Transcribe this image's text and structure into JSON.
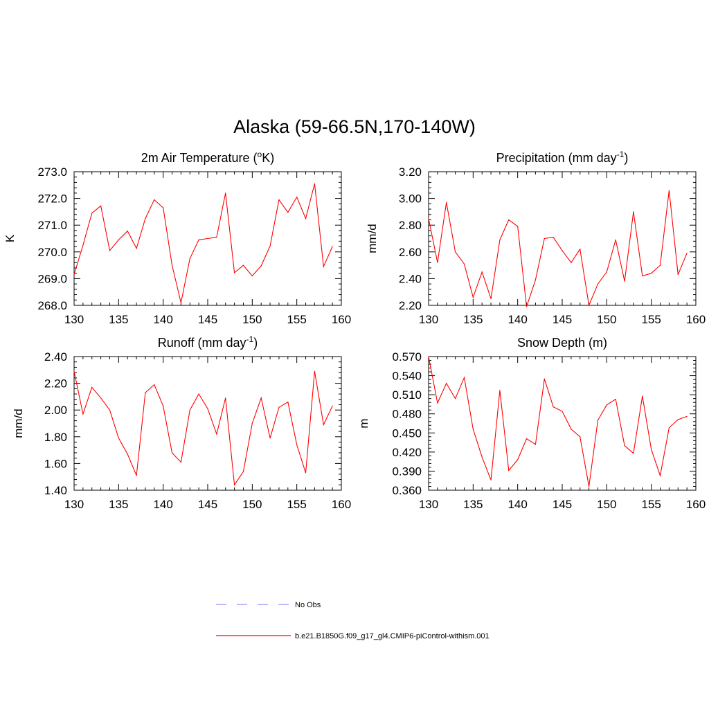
{
  "figure": {
    "title": "Alaska (59-66.5N,170-140W)"
  },
  "chart_data": [
    {
      "id": "temp",
      "type": "line",
      "title_main": "2m Air Temperature (",
      "title_sup": "o",
      "title_tail": "K)",
      "ylabel": "K",
      "xlabel": "",
      "xlim": [
        130,
        160
      ],
      "ylim": [
        268.0,
        273.0
      ],
      "xticks": [
        130,
        135,
        140,
        145,
        150,
        155,
        160
      ],
      "yticks": [
        "268.0",
        "269.0",
        "270.0",
        "271.0",
        "272.0",
        "273.0"
      ],
      "series": [
        {
          "x": [
            130,
            131,
            132,
            133,
            134,
            135,
            136,
            137,
            138,
            139,
            140,
            141,
            142,
            143,
            144,
            145,
            146,
            147,
            148,
            149,
            150,
            151,
            152,
            153,
            154,
            155,
            156,
            157,
            158,
            159
          ],
          "y": [
            269.15,
            270.25,
            271.45,
            271.72,
            270.05,
            270.45,
            270.78,
            270.13,
            271.25,
            271.95,
            271.65,
            269.5,
            268.1,
            269.75,
            270.45,
            270.5,
            270.55,
            272.2,
            269.22,
            269.5,
            269.1,
            269.48,
            270.22,
            271.95,
            271.48,
            272.05,
            271.25,
            272.55,
            269.45,
            270.2
          ],
          "color": "#ff0000"
        }
      ]
    },
    {
      "id": "precip",
      "type": "line",
      "title_main": "Precipitation (mm day",
      "title_sup": "-1",
      "title_tail": ")",
      "ylabel": "mm/d",
      "xlabel": "",
      "xlim": [
        130,
        160
      ],
      "ylim": [
        2.2,
        3.2
      ],
      "xticks": [
        130,
        135,
        140,
        145,
        150,
        155,
        160
      ],
      "yticks": [
        "2.20",
        "2.40",
        "2.60",
        "2.80",
        "3.00",
        "3.20"
      ],
      "series": [
        {
          "x": [
            130,
            131,
            132,
            133,
            134,
            135,
            136,
            137,
            138,
            139,
            140,
            141,
            142,
            143,
            144,
            145,
            146,
            147,
            148,
            149,
            150,
            151,
            152,
            153,
            154,
            155,
            156,
            157,
            158,
            159
          ],
          "y": [
            2.85,
            2.52,
            2.97,
            2.6,
            2.51,
            2.26,
            2.45,
            2.25,
            2.69,
            2.84,
            2.79,
            2.19,
            2.39,
            2.7,
            2.71,
            2.61,
            2.52,
            2.62,
            2.2,
            2.36,
            2.45,
            2.69,
            2.38,
            2.9,
            2.42,
            2.44,
            2.5,
            3.06,
            2.43,
            2.59
          ],
          "color": "#ff0000"
        }
      ]
    },
    {
      "id": "runoff",
      "type": "line",
      "title_main": "Runoff (mm day",
      "title_sup": "-1",
      "title_tail": ")",
      "ylabel": "mm/d",
      "xlabel": "",
      "xlim": [
        130,
        160
      ],
      "ylim": [
        1.4,
        2.4
      ],
      "xticks": [
        130,
        135,
        140,
        145,
        150,
        155,
        160
      ],
      "yticks": [
        "1.40",
        "1.60",
        "1.80",
        "2.00",
        "2.20",
        "2.40"
      ],
      "series": [
        {
          "x": [
            130,
            131,
            132,
            133,
            134,
            135,
            136,
            137,
            138,
            139,
            140,
            141,
            142,
            143,
            144,
            145,
            146,
            147,
            148,
            149,
            150,
            151,
            152,
            153,
            154,
            155,
            156,
            157,
            158,
            159
          ],
          "y": [
            2.29,
            1.97,
            2.17,
            2.09,
            2.0,
            1.79,
            1.67,
            1.51,
            2.13,
            2.19,
            2.03,
            1.68,
            1.61,
            2.0,
            2.12,
            2.01,
            1.82,
            2.09,
            1.44,
            1.54,
            1.9,
            2.09,
            1.79,
            2.02,
            2.06,
            1.74,
            1.53,
            2.29,
            1.89,
            2.03
          ],
          "color": "#ff0000"
        }
      ]
    },
    {
      "id": "snow",
      "type": "line",
      "title_main": "Snow Depth (m)",
      "title_sup": "",
      "title_tail": "",
      "ylabel": "m",
      "xlabel": "",
      "xlim": [
        130,
        160
      ],
      "ylim": [
        0.36,
        0.57
      ],
      "xticks": [
        130,
        135,
        140,
        145,
        150,
        155,
        160
      ],
      "yticks": [
        "0.360",
        "0.390",
        "0.420",
        "0.450",
        "0.480",
        "0.510",
        "0.540",
        "0.570"
      ],
      "series": [
        {
          "x": [
            130,
            131,
            132,
            133,
            134,
            135,
            136,
            137,
            138,
            139,
            140,
            141,
            142,
            143,
            144,
            145,
            146,
            147,
            148,
            149,
            150,
            151,
            152,
            153,
            154,
            155,
            156,
            157,
            158,
            159
          ],
          "y": [
            0.57,
            0.497,
            0.528,
            0.504,
            0.537,
            0.456,
            0.412,
            0.376,
            0.517,
            0.391,
            0.408,
            0.441,
            0.432,
            0.535,
            0.491,
            0.484,
            0.456,
            0.444,
            0.366,
            0.47,
            0.494,
            0.503,
            0.43,
            0.418,
            0.508,
            0.424,
            0.383,
            0.458,
            0.471,
            0.476
          ],
          "color": "#ff0000"
        }
      ]
    }
  ],
  "legend": {
    "items": [
      {
        "label": "No Obs",
        "color": "#8f8fff",
        "style": "dashed"
      },
      {
        "label": "b.e21.B1850G.f09_g17_gl4.CMIP6-piControl-withism.001",
        "color": "#ff0000",
        "style": "solid"
      }
    ]
  }
}
